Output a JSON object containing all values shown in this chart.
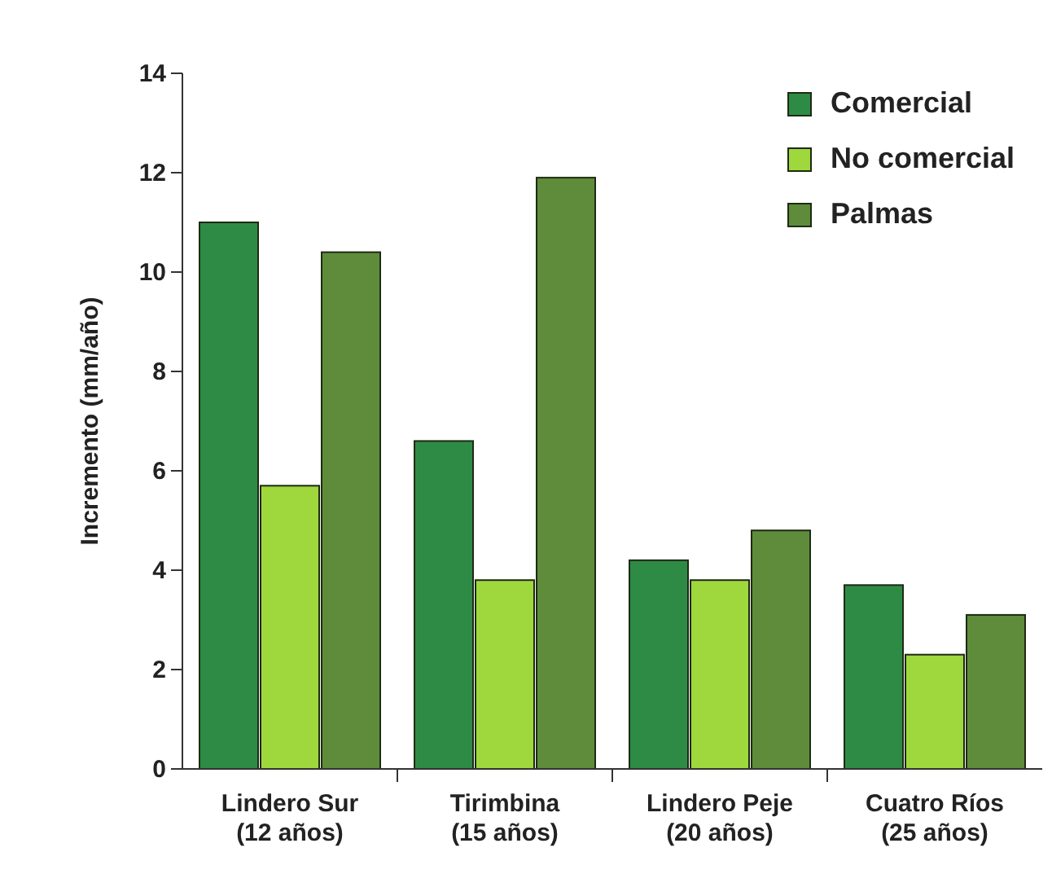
{
  "chart_data": {
    "type": "bar",
    "ylabel": "Incremento (mm/año)",
    "categories": [
      "Lindero Sur (12 años)",
      "Tirimbina (15 años)",
      "Lindero Peje (20 años)",
      "Cuatro Ríos (25 años)"
    ],
    "series": [
      {
        "name": "Comercial",
        "color": "#2e8b45",
        "values": [
          11.0,
          6.6,
          4.2,
          3.7
        ]
      },
      {
        "name": "No comercial",
        "color": "#9ed83c",
        "values": [
          5.7,
          3.8,
          3.8,
          2.3
        ]
      },
      {
        "name": "Palmas",
        "color": "#5e8c3a",
        "values": [
          10.4,
          11.9,
          4.8,
          3.1
        ]
      }
    ],
    "ylim": [
      0,
      14
    ],
    "yticks": [
      0,
      2,
      4,
      6,
      8,
      10,
      12,
      14
    ],
    "grid": false,
    "legend": "top right"
  }
}
